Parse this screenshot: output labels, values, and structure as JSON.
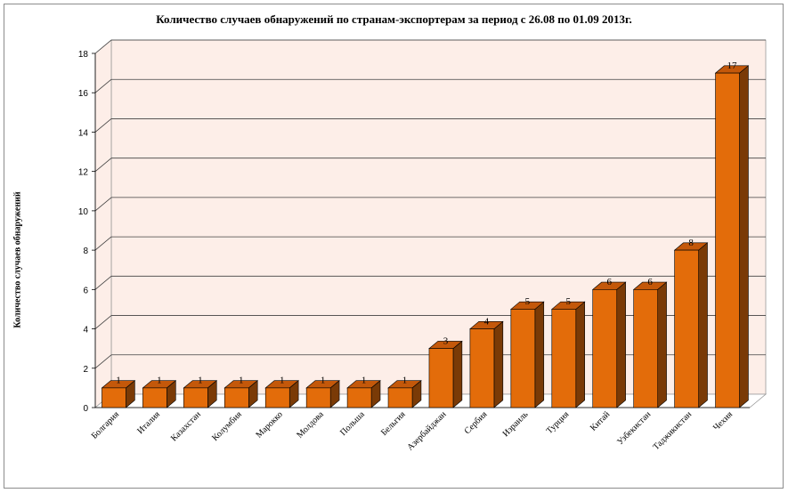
{
  "chart_data": {
    "type": "bar",
    "title": "Количество случаев обнаружений по странам-экспортерам за период с 26.08 по 01.09 2013г.",
    "xlabel": "",
    "ylabel": "Количество случаев обнаружений",
    "ylim": [
      0,
      18
    ],
    "ytick_step": 2,
    "grid": true,
    "legend": "none",
    "categories": [
      "Болгария",
      "Италия",
      "Казахстан",
      "Колумбия",
      "Марокко",
      "Молдова",
      "Польша",
      "Бельгия",
      "Азербайджан",
      "Сербия",
      "Израиль",
      "Турция",
      "Китай",
      "Узбекистан",
      "Таджикистан",
      "Чехия"
    ],
    "values": [
      1,
      1,
      1,
      1,
      1,
      1,
      1,
      1,
      3,
      4,
      5,
      5,
      6,
      6,
      8,
      17
    ],
    "colors": {
      "bar_front": "#e36c0a",
      "bar_side": "#7a3a06",
      "bar_top": "#c4580a",
      "wall": "#fdeee8",
      "floor": "#ffffff",
      "grid": "#404040"
    }
  }
}
